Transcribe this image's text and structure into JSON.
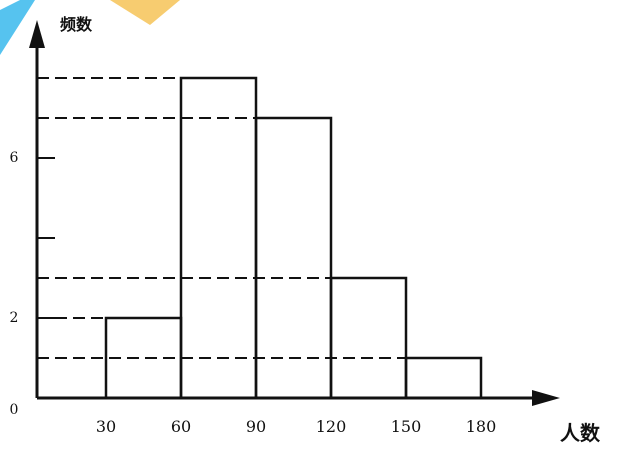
{
  "chart_data": {
    "type": "bar",
    "chart_kind": "histogram",
    "ylabel": "频数",
    "xlabel": "人数",
    "x_ticks": [
      30,
      60,
      90,
      120,
      150,
      180
    ],
    "y_tick_labels": [
      {
        "label": "0",
        "value": 0
      },
      {
        "label": "2",
        "value": 2
      },
      {
        "label": "6",
        "value": 6
      }
    ],
    "y_tick_marks": [
      2,
      4,
      6
    ],
    "bins": [
      {
        "from": 30,
        "to": 60,
        "value": 2
      },
      {
        "from": 60,
        "to": 90,
        "value": 8
      },
      {
        "from": 90,
        "to": 120,
        "value": 7
      },
      {
        "from": 120,
        "to": 150,
        "value": 3
      },
      {
        "from": 150,
        "to": 180,
        "value": 1
      }
    ],
    "reference_lines": [
      1,
      2,
      3,
      7,
      8
    ],
    "xlim": [
      0,
      180
    ],
    "ylim": [
      0,
      8
    ],
    "grid": false,
    "colors": {
      "ink": "#111111",
      "watermark": "#38b8ec",
      "watermark_accent": "#f6c761"
    }
  }
}
